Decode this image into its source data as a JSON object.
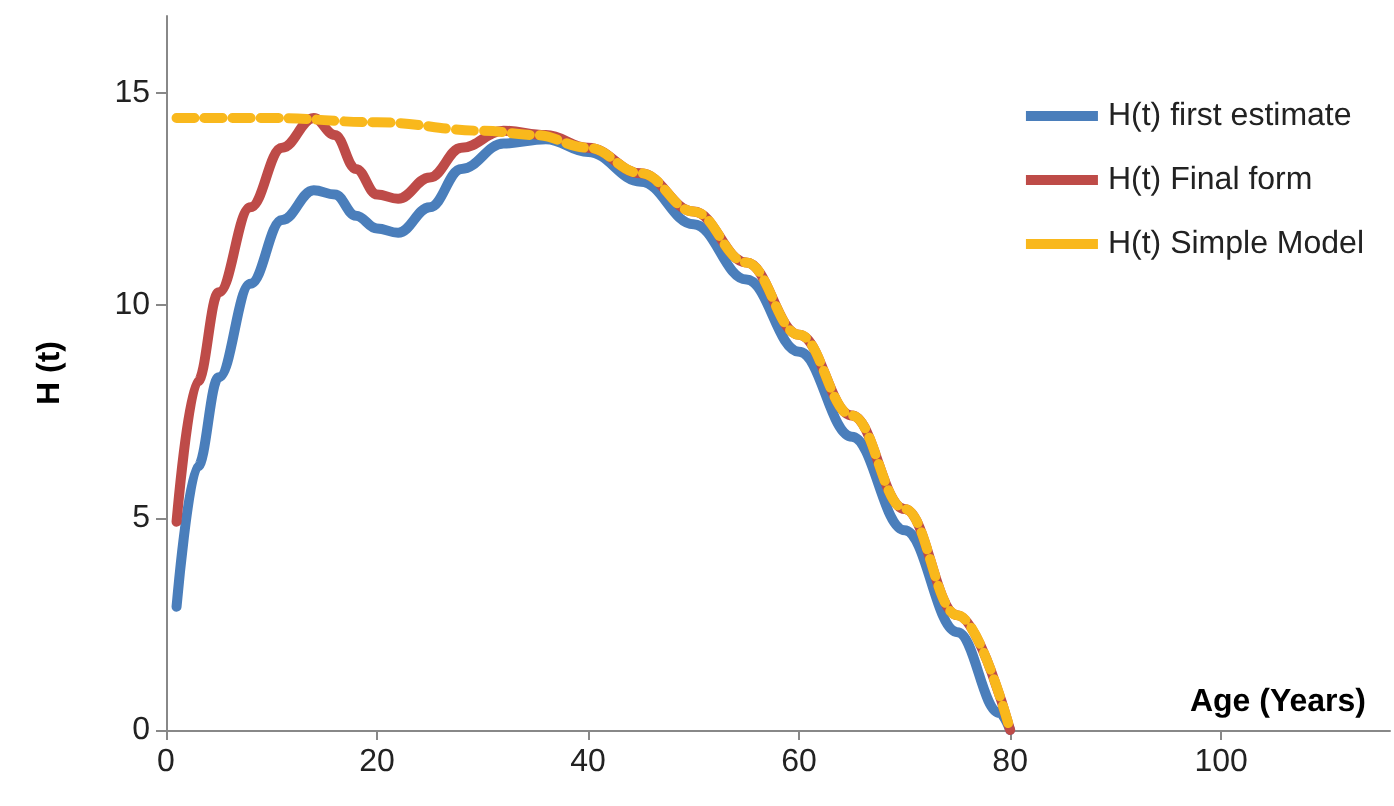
{
  "chart_data": {
    "type": "line",
    "xlabel": "Age (Years)",
    "ylabel": "H (t)",
    "xlim": [
      0,
      116
    ],
    "xticks": [
      0,
      20,
      40,
      60,
      80,
      100
    ],
    "ylim": [
      0,
      16.8
    ],
    "yticks": [
      0,
      5,
      10,
      15
    ],
    "grid": false,
    "legend": "top right",
    "marker": "none",
    "series": [
      {
        "name": "H(t) first estimate",
        "color": "#4a7ebb",
        "line_style": "solid",
        "x": [
          1,
          3,
          5,
          8,
          11,
          14,
          16,
          18,
          20,
          22,
          25,
          28,
          32,
          36,
          40,
          45,
          50,
          55,
          60,
          65,
          70,
          75,
          79,
          80
        ],
        "values": [
          2.9,
          6.2,
          8.3,
          10.5,
          12.0,
          12.7,
          12.6,
          12.1,
          11.8,
          11.7,
          12.3,
          13.2,
          13.8,
          13.9,
          13.6,
          12.9,
          11.9,
          10.6,
          8.9,
          6.9,
          4.7,
          2.3,
          0.4,
          0
        ]
      },
      {
        "name": "H(t) Final form",
        "color": "#be4b48",
        "line_style": "solid",
        "x": [
          1,
          3,
          5,
          8,
          11,
          14,
          16,
          18,
          20,
          22,
          25,
          28,
          32,
          36,
          40,
          45,
          50,
          55,
          60,
          65,
          70,
          75,
          80
        ],
        "values": [
          4.9,
          8.2,
          10.3,
          12.3,
          13.7,
          14.4,
          14.0,
          13.2,
          12.6,
          12.5,
          13.0,
          13.7,
          14.1,
          14.0,
          13.7,
          13.1,
          12.2,
          11.0,
          9.3,
          7.4,
          5.2,
          2.7,
          0
        ]
      },
      {
        "name": "H(t) Simple Model",
        "color": "#f9b81c",
        "line_style": "dashed",
        "x": [
          1,
          10,
          20,
          30,
          35,
          40,
          45,
          50,
          55,
          60,
          65,
          70,
          75,
          80
        ],
        "values": [
          14.4,
          14.4,
          14.3,
          14.1,
          14.0,
          13.7,
          13.1,
          12.2,
          11.0,
          9.3,
          7.4,
          5.2,
          2.7,
          0
        ]
      }
    ]
  }
}
